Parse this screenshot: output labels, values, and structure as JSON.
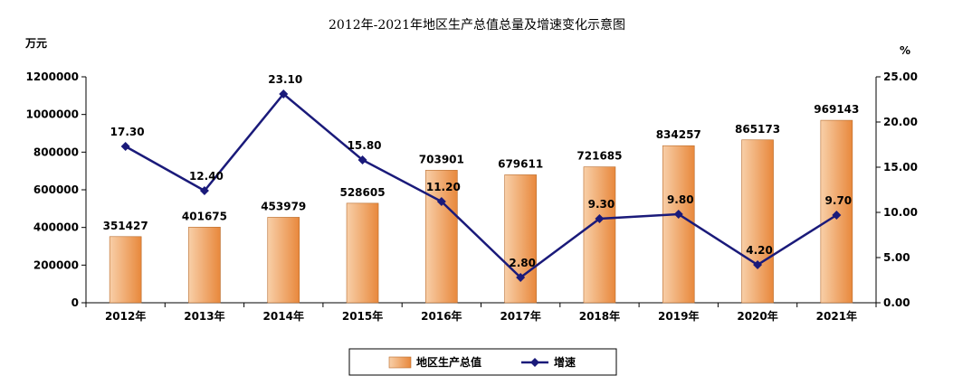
{
  "chart_data": {
    "type": "bar+line",
    "title": "2012年-2021年地区生产总值总量及增速变化示意图",
    "categories": [
      "2012年",
      "2013年",
      "2014年",
      "2015年",
      "2016年",
      "2017年",
      "2018年",
      "2019年",
      "2020年",
      "2021年"
    ],
    "y_left": {
      "unit": "万元",
      "range": [
        0,
        1200000
      ],
      "ticks": [
        "0",
        "200000",
        "400000",
        "600000",
        "800000",
        "1000000",
        "1200000"
      ]
    },
    "y_right": {
      "unit": "%",
      "range": [
        0,
        25
      ],
      "ticks": [
        "0.00",
        "5.00",
        "10.00",
        "15.00",
        "20.00",
        "25.00"
      ]
    },
    "series": [
      {
        "name": "地区生产总值",
        "type": "bar",
        "axis": "left",
        "values": [
          351427,
          401675,
          453979,
          528605,
          703901,
          679611,
          721685,
          834257,
          865173,
          969143
        ],
        "labels": [
          "351427",
          "401675",
          "453979",
          "528605",
          "703901",
          "679611",
          "721685",
          "834257",
          "865173",
          "969143"
        ]
      },
      {
        "name": "增速",
        "type": "line",
        "axis": "right",
        "values": [
          17.3,
          12.4,
          23.1,
          15.8,
          11.2,
          2.8,
          9.3,
          9.8,
          4.2,
          9.7
        ],
        "labels": [
          "17.30",
          "12.40",
          "23.10",
          "15.80",
          "11.20",
          "2.80",
          "9.30",
          "9.80",
          "4.20",
          "9.70"
        ]
      }
    ],
    "legend": "bottom",
    "grid": false,
    "colors": {
      "bar_light": "#F8CFA8",
      "bar_dark": "#E8883C",
      "bar_edge": "#B86A2A",
      "line": "#1A1A7A",
      "axis": "#000000"
    }
  }
}
